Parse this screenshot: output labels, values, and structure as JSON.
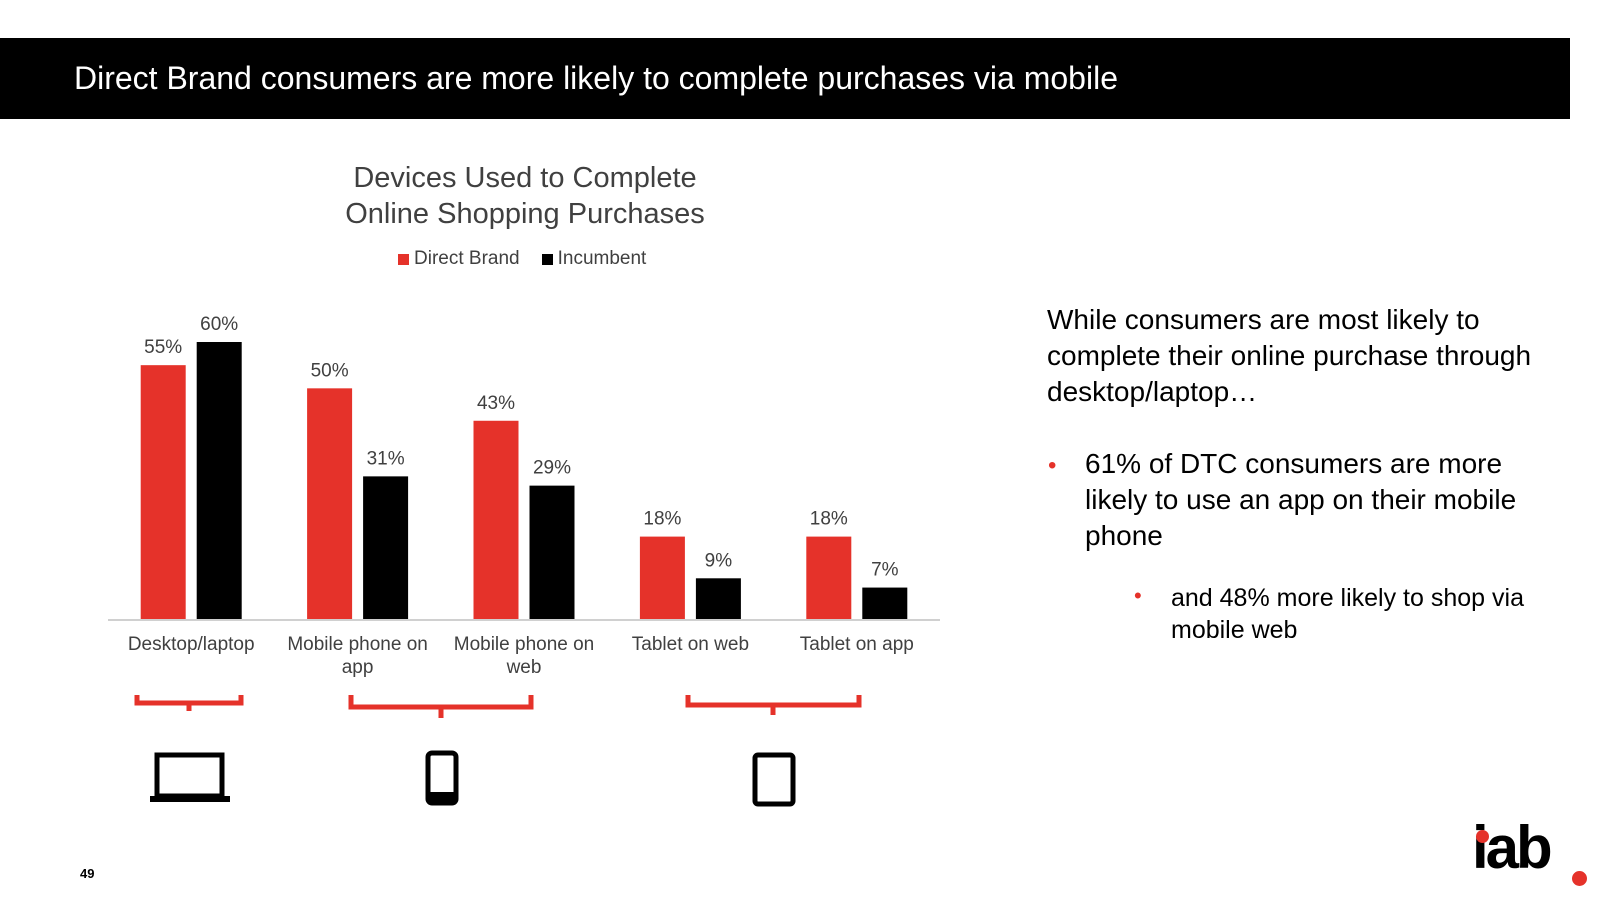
{
  "header": {
    "title": "Direct Brand consumers are more likely to complete purchases via mobile"
  },
  "chart_data": {
    "type": "bar",
    "title": "Devices Used to Complete Online Shopping Purchases",
    "title_lines": [
      "Devices Used to Complete",
      "Online Shopping Purchases"
    ],
    "categories": [
      "Desktop/laptop",
      "Mobile phone on app",
      "Mobile phone on web",
      "Tablet on web",
      "Tablet on app"
    ],
    "category_lines": [
      [
        "Desktop/laptop"
      ],
      [
        "Mobile phone on",
        "app"
      ],
      [
        "Mobile phone on",
        "web"
      ],
      [
        "Tablet on web"
      ],
      [
        "Tablet on app"
      ]
    ],
    "series": [
      {
        "name": "Direct Brand",
        "values": [
          55,
          50,
          43,
          18,
          18
        ],
        "labels": [
          "55%",
          "50%",
          "43%",
          "18%",
          "18%"
        ],
        "color": "#e5322a"
      },
      {
        "name": "Incumbent",
        "values": [
          60,
          31,
          29,
          9,
          7
        ],
        "labels": [
          "60%",
          "31%",
          "29%",
          "9%",
          "7%"
        ],
        "color": "#000000"
      }
    ],
    "ylim": [
      0,
      60
    ],
    "legend_position": "top",
    "grid": false,
    "label_color": "#404040"
  },
  "device_groups": [
    {
      "icon": "laptop-icon"
    },
    {
      "icon": "smartphone-icon"
    },
    {
      "icon": "tablet-icon"
    }
  ],
  "right_panel": {
    "lead": "While consumers are most likely to complete their online purchase through desktop/laptop…",
    "bullet_1": "61% of DTC consumers are more likely to use an app on their mobile phone",
    "bullet_2": "and 48% more likely to shop via mobile web",
    "bullet_glyph": "•"
  },
  "footer": {
    "page_number": "49",
    "logo_text": "iab"
  },
  "colors": {
    "accent": "#e5322a",
    "header_bg": "#000000"
  }
}
